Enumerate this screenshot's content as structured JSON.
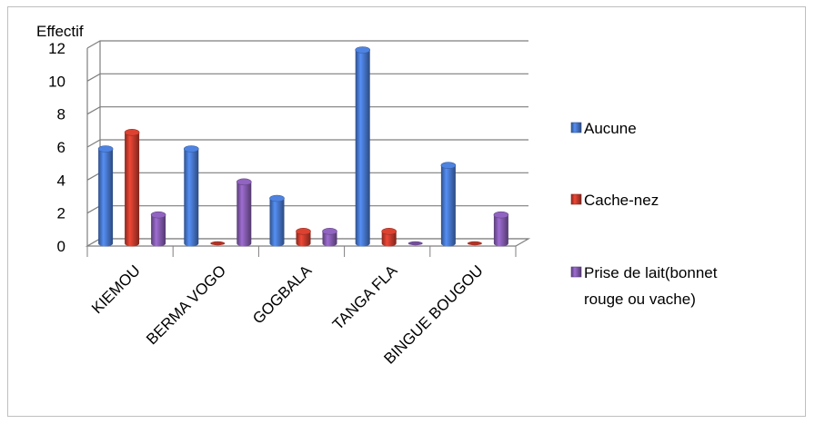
{
  "chart_data": {
    "type": "bar",
    "title": "",
    "ylabel": "Effectif",
    "xlabel": "",
    "categories": [
      "KIEMOU",
      "BERMA VOGO",
      "GOGBALA",
      "TANGA FLA",
      "BINGUE BOUGOU"
    ],
    "series": [
      {
        "name": "Aucune",
        "values": [
          6,
          6,
          3,
          12,
          5
        ],
        "color": "#4472c4"
      },
      {
        "name": "Cache-nez",
        "values": [
          7,
          0,
          1,
          1,
          0
        ],
        "color": "#c0392b"
      },
      {
        "name": "Prise de lait(bonnet rouge ou vache)",
        "values": [
          2,
          4,
          1,
          0,
          2
        ],
        "color": "#7e57a8"
      }
    ],
    "ylim": [
      0,
      12
    ],
    "yticks": [
      0,
      2,
      4,
      6,
      8,
      10,
      12
    ],
    "grid": true,
    "legend": "right",
    "style": "3d-cylinder"
  }
}
